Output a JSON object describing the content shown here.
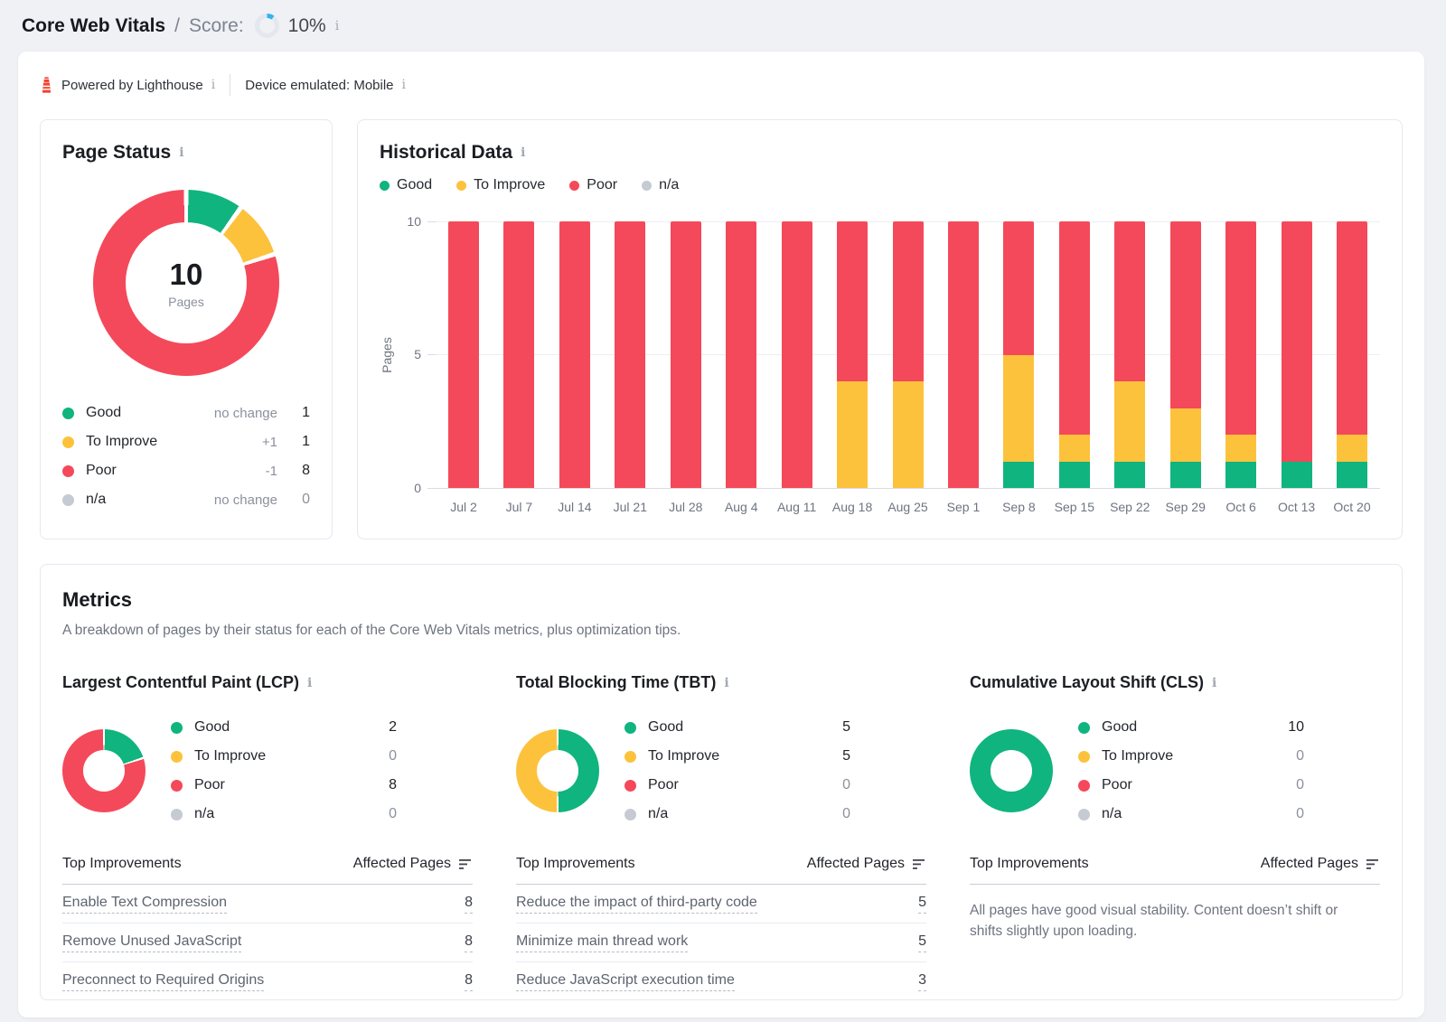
{
  "colors": {
    "good": "#10b47e",
    "to_improve": "#fdc23c",
    "poor": "#f4495a",
    "na": "#c5cad3",
    "score_blue": "#30b3f0",
    "lighthouse_red": "#f5402c"
  },
  "header": {
    "title": "Core Web Vitals",
    "separator": "/",
    "score_label": "Score:",
    "score_value": "10%",
    "score_percent": 10
  },
  "meta": {
    "powered_by": "Powered by Lighthouse",
    "device_label": "Device emulated: Mobile"
  },
  "page_status": {
    "title": "Page Status",
    "total": "10",
    "total_label": "Pages",
    "legend": [
      {
        "label": "Good",
        "change": "no change",
        "count": "1",
        "color_key": "good"
      },
      {
        "label": "To Improve",
        "change": "+1",
        "count": "1",
        "color_key": "to_improve"
      },
      {
        "label": "Poor",
        "change": "-1",
        "count": "8",
        "color_key": "poor"
      },
      {
        "label": "n/a",
        "change": "no change",
        "count": "0",
        "color_key": "na"
      }
    ]
  },
  "chart_data": {
    "type": "bar",
    "stacked": true,
    "title": "Historical Data",
    "ylabel": "Pages",
    "ylim": [
      0,
      10
    ],
    "yticks": [
      "0",
      "5",
      "10"
    ],
    "grid": true,
    "legend_position": "top",
    "categories": [
      "Jul 2",
      "Jul 7",
      "Jul 14",
      "Jul 21",
      "Jul 28",
      "Aug 4",
      "Aug 11",
      "Aug 18",
      "Aug 25",
      "Sep 1",
      "Sep 8",
      "Sep 15",
      "Sep 22",
      "Sep 29",
      "Oct 6",
      "Oct 13",
      "Oct 20"
    ],
    "series": [
      {
        "name": "Good",
        "color_key": "good",
        "values": [
          0,
          0,
          0,
          0,
          0,
          0,
          0,
          0,
          0,
          0,
          1,
          1,
          1,
          1,
          1,
          1,
          1
        ]
      },
      {
        "name": "To Improve",
        "color_key": "to_improve",
        "values": [
          0,
          0,
          0,
          0,
          0,
          0,
          0,
          4,
          4,
          0,
          4,
          1,
          3,
          2,
          1,
          0,
          1
        ]
      },
      {
        "name": "Poor",
        "color_key": "poor",
        "values": [
          10,
          10,
          10,
          10,
          10,
          10,
          10,
          6,
          6,
          10,
          5,
          8,
          6,
          7,
          8,
          9,
          8
        ]
      },
      {
        "name": "n/a",
        "color_key": "na",
        "values": [
          0,
          0,
          0,
          0,
          0,
          0,
          0,
          0,
          0,
          0,
          0,
          0,
          0,
          0,
          0,
          0,
          0
        ]
      }
    ]
  },
  "metrics": {
    "title": "Metrics",
    "subtitle": "A breakdown of pages by their status for each of the Core Web Vitals metrics, plus optimization tips.",
    "table_col1": "Top Improvements",
    "table_col2": "Affected Pages",
    "cards": [
      {
        "title": "Largest Contentful Paint (LCP)",
        "legend": [
          {
            "label": "Good",
            "count": "2",
            "color_key": "good"
          },
          {
            "label": "To Improve",
            "count": "0",
            "color_key": "to_improve"
          },
          {
            "label": "Poor",
            "count": "8",
            "color_key": "poor"
          },
          {
            "label": "n/a",
            "count": "0",
            "color_key": "na"
          }
        ],
        "improvements": [
          {
            "label": "Enable Text Compression",
            "pages": "8"
          },
          {
            "label": "Remove Unused JavaScript",
            "pages": "8"
          },
          {
            "label": "Preconnect to Required Origins",
            "pages": "8"
          }
        ]
      },
      {
        "title": "Total Blocking Time (TBT)",
        "legend": [
          {
            "label": "Good",
            "count": "5",
            "color_key": "good"
          },
          {
            "label": "To Improve",
            "count": "5",
            "color_key": "to_improve"
          },
          {
            "label": "Poor",
            "count": "0",
            "color_key": "poor"
          },
          {
            "label": "n/a",
            "count": "0",
            "color_key": "na"
          }
        ],
        "improvements": [
          {
            "label": "Reduce the impact of third-party code",
            "pages": "5"
          },
          {
            "label": "Minimize main thread work",
            "pages": "5"
          },
          {
            "label": "Reduce JavaScript execution time",
            "pages": "3"
          }
        ]
      },
      {
        "title": "Cumulative Layout Shift (CLS)",
        "legend": [
          {
            "label": "Good",
            "count": "10",
            "color_key": "good"
          },
          {
            "label": "To Improve",
            "count": "0",
            "color_key": "to_improve"
          },
          {
            "label": "Poor",
            "count": "0",
            "color_key": "poor"
          },
          {
            "label": "n/a",
            "count": "0",
            "color_key": "na"
          }
        ],
        "improvements": [],
        "note": "All pages have good visual stability. Content doesn’t shift or shifts slightly upon loading."
      }
    ]
  }
}
